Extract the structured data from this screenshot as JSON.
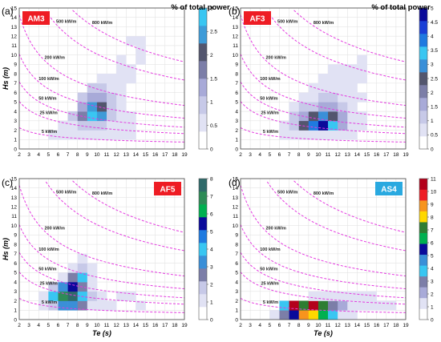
{
  "figure": {
    "colorbar_title": "% of total power",
    "x_axis_label": "Te (s)",
    "y_axis_label": "Hs (m)"
  },
  "chart_data": [
    {
      "type": "heatmap",
      "panel": "(a)",
      "station": "AM3",
      "station_color": "#ee1c24",
      "xlabel": "",
      "ylabel": "Hs (m)",
      "xlim": [
        2,
        19
      ],
      "ylim": [
        0,
        15
      ],
      "xticks": [
        2,
        3,
        4,
        5,
        6,
        7,
        8,
        9,
        10,
        11,
        12,
        13,
        14,
        15,
        16,
        17,
        18,
        19
      ],
      "yticks": [
        0,
        1,
        2,
        3,
        4,
        5,
        6,
        7,
        8,
        9,
        10,
        11,
        12,
        13,
        14,
        15
      ],
      "grid": true,
      "contours": [
        {
          "label": "5 kW/m",
          "power": 5
        },
        {
          "label": "25 kW/m",
          "power": 25
        },
        {
          "label": "50 kW/m",
          "power": 50
        },
        {
          "label": "100 kW/m",
          "power": 100
        },
        {
          "label": "200 kW/m",
          "power": 200
        },
        {
          "label": "500 kW/m",
          "power": 500
        },
        {
          "label": "800 kW/m",
          "power": 800
        }
      ],
      "colorbar": {
        "ticks": [
          "0",
          "0.5",
          "1",
          "1.5",
          "2",
          "2.5",
          "3"
        ],
        "max": 3,
        "colors": [
          "#ffffff",
          "#e1e2f4",
          "#c7c9e8",
          "#a8aad8",
          "#7c7ea8",
          "#53566e",
          "#3e9bd8",
          "#39c6f2"
        ]
      },
      "cells": [
        [
          5,
          1,
          0.08
        ],
        [
          6,
          1,
          0.12
        ],
        [
          7,
          1,
          0.12
        ],
        [
          8,
          1,
          0.18
        ],
        [
          9,
          1,
          0.2
        ],
        [
          10,
          1,
          0.2
        ],
        [
          11,
          1,
          0.15
        ],
        [
          12,
          1,
          0.1
        ],
        [
          13,
          1,
          0.06
        ],
        [
          6,
          2,
          0.15
        ],
        [
          7,
          2,
          0.3
        ],
        [
          8,
          2,
          0.5
        ],
        [
          9,
          2,
          0.6
        ],
        [
          10,
          2,
          0.5
        ],
        [
          11,
          2,
          0.35
        ],
        [
          12,
          2,
          0.2
        ],
        [
          13,
          2,
          0.1
        ],
        [
          7,
          3,
          0.5
        ],
        [
          8,
          3,
          1.3
        ],
        [
          9,
          3,
          2.8
        ],
        [
          10,
          3,
          2.3
        ],
        [
          11,
          3,
          0.8
        ],
        [
          12,
          3,
          0.3
        ],
        [
          13,
          3,
          0.1
        ],
        [
          8,
          4,
          1.0
        ],
        [
          9,
          4,
          2.4
        ],
        [
          10,
          4,
          1.9
        ],
        [
          11,
          4,
          0.7
        ],
        [
          12,
          4,
          0.25
        ],
        [
          8,
          5,
          0.5
        ],
        [
          9,
          5,
          1.2
        ],
        [
          10,
          5,
          1.1
        ],
        [
          11,
          5,
          0.45
        ],
        [
          12,
          5,
          0.15
        ],
        [
          9,
          6,
          0.5
        ],
        [
          10,
          6,
          0.45
        ],
        [
          11,
          6,
          0.2
        ],
        [
          12,
          6,
          0.1
        ],
        [
          10,
          7,
          0.15
        ],
        [
          11,
          7,
          0.1
        ],
        [
          12,
          7,
          0.08
        ],
        [
          13,
          7,
          0.05
        ],
        [
          12,
          8,
          0.08
        ],
        [
          13,
          8,
          0.05
        ],
        [
          12,
          9,
          0.05
        ],
        [
          14,
          9,
          0.05
        ],
        [
          14,
          10,
          0.05
        ],
        [
          13,
          11,
          0.05
        ],
        [
          14,
          11,
          0.05
        ]
      ]
    },
    {
      "type": "heatmap",
      "panel": "(b)",
      "station": "AF3",
      "station_color": "#ee1c24",
      "xlabel": "",
      "ylabel": "",
      "xlim": [
        2,
        19
      ],
      "ylim": [
        0,
        15
      ],
      "xticks": [
        2,
        3,
        4,
        5,
        6,
        7,
        8,
        9,
        10,
        11,
        12,
        13,
        14,
        15,
        16,
        17,
        18,
        19
      ],
      "yticks": [
        0,
        1,
        2,
        3,
        4,
        5,
        6,
        7,
        8,
        9,
        10,
        11,
        12,
        13,
        14,
        15
      ],
      "grid": true,
      "contours": [
        {
          "label": "5 kW/m",
          "power": 5
        },
        {
          "label": "25 kW/m",
          "power": 25
        },
        {
          "label": "50 kW/m",
          "power": 50
        },
        {
          "label": "100 kW/m",
          "power": 100
        },
        {
          "label": "200 kW/m",
          "power": 200
        },
        {
          "label": "500 kW/m",
          "power": 500
        },
        {
          "label": "800 kW/m",
          "power": 800
        }
      ],
      "colorbar": {
        "ticks": [
          "0",
          "0.5",
          "1",
          "1.5",
          "2",
          "2.5",
          "3",
          "3.5",
          "4",
          "4.5",
          "5"
        ],
        "max": 5,
        "colors": [
          "#ffffff",
          "#e1e2f4",
          "#c7c9e8",
          "#a8aad8",
          "#7c7ea8",
          "#53566e",
          "#3a8fd8",
          "#39c6f2",
          "#1f7ae0",
          "#1a3fd6",
          "#0a0a9a"
        ]
      },
      "cells": [
        [
          6,
          1,
          0.1
        ],
        [
          7,
          1,
          0.15
        ],
        [
          8,
          1,
          0.3
        ],
        [
          9,
          1,
          0.5
        ],
        [
          10,
          1,
          0.5
        ],
        [
          11,
          1,
          0.4
        ],
        [
          12,
          1,
          0.2
        ],
        [
          13,
          1,
          0.1
        ],
        [
          6,
          2,
          0.3
        ],
        [
          7,
          2,
          0.7
        ],
        [
          8,
          2,
          2.3
        ],
        [
          9,
          2,
          3.8
        ],
        [
          10,
          2,
          4.6
        ],
        [
          11,
          2,
          3.4
        ],
        [
          12,
          2,
          1.2
        ],
        [
          13,
          2,
          0.4
        ],
        [
          14,
          2,
          0.1
        ],
        [
          7,
          3,
          0.6
        ],
        [
          8,
          3,
          1.5
        ],
        [
          9,
          3,
          2.4
        ],
        [
          10,
          3,
          3.0
        ],
        [
          11,
          3,
          2.5
        ],
        [
          12,
          3,
          1.3
        ],
        [
          13,
          3,
          0.4
        ],
        [
          14,
          3,
          0.15
        ],
        [
          7,
          4,
          0.3
        ],
        [
          8,
          4,
          0.6
        ],
        [
          9,
          4,
          1.0
        ],
        [
          10,
          4,
          1.4
        ],
        [
          11,
          4,
          1.1
        ],
        [
          12,
          4,
          0.6
        ],
        [
          13,
          4,
          0.2
        ],
        [
          8,
          5,
          0.3
        ],
        [
          9,
          5,
          0.5
        ],
        [
          10,
          5,
          0.6
        ],
        [
          11,
          5,
          0.6
        ],
        [
          12,
          5,
          0.4
        ],
        [
          13,
          5,
          0.15
        ],
        [
          14,
          5,
          0.1
        ],
        [
          9,
          6,
          0.2
        ],
        [
          10,
          6,
          0.3
        ],
        [
          11,
          6,
          0.3
        ],
        [
          12,
          6,
          0.25
        ],
        [
          13,
          6,
          0.15
        ],
        [
          10,
          7,
          0.1
        ],
        [
          11,
          7,
          0.15
        ],
        [
          12,
          7,
          0.1
        ],
        [
          13,
          7,
          0.08
        ],
        [
          14,
          7,
          0.05
        ],
        [
          11,
          8,
          0.05
        ],
        [
          12,
          8,
          0.05
        ],
        [
          13,
          8,
          0.05
        ],
        [
          14,
          8,
          0.05
        ],
        [
          14,
          9,
          0.05
        ]
      ]
    },
    {
      "type": "heatmap",
      "panel": "(c)",
      "station": "AF5",
      "station_color": "#ee1c24",
      "xlabel": "Te (s)",
      "ylabel": "Hs (m)",
      "xlim": [
        2,
        19
      ],
      "ylim": [
        0,
        15
      ],
      "xticks": [
        2,
        3,
        4,
        5,
        6,
        7,
        8,
        9,
        10,
        11,
        12,
        13,
        14,
        15,
        16,
        17,
        18,
        19
      ],
      "yticks": [
        0,
        1,
        2,
        3,
        4,
        5,
        6,
        7,
        8,
        9,
        10,
        11,
        12,
        13,
        14,
        15
      ],
      "grid": true,
      "contours": [
        {
          "label": "5 kW/m",
          "power": 5
        },
        {
          "label": "25 kW/m",
          "power": 25
        },
        {
          "label": "50 kW/m",
          "power": 50
        },
        {
          "label": "100 kW/m",
          "power": 100
        },
        {
          "label": "200 kW/m",
          "power": 200
        },
        {
          "label": "500 kW/m",
          "power": 500
        },
        {
          "label": "800 kW/m",
          "power": 800
        }
      ],
      "colorbar": {
        "ticks": [
          "0",
          "1",
          "2",
          "3",
          "4",
          "5",
          "6",
          "7",
          "8"
        ],
        "max": 8,
        "colors": [
          "#ffffff",
          "#e1e2f4",
          "#c7c9e8",
          "#7c7ea8",
          "#3a8fd8",
          "#39c6f2",
          "#1f7ae0",
          "#0a0a9a",
          "#00b050",
          "#2e8b57",
          "#2f6a6a"
        ]
      },
      "cells": [
        [
          4,
          1,
          0.3
        ],
        [
          5,
          1,
          1.2
        ],
        [
          6,
          1,
          2.5
        ],
        [
          7,
          1,
          3.0
        ],
        [
          8,
          1,
          2.0
        ],
        [
          9,
          1,
          0.7
        ],
        [
          10,
          1,
          0.3
        ],
        [
          11,
          1,
          0.1
        ],
        [
          4,
          2,
          0.5
        ],
        [
          5,
          2,
          3.5
        ],
        [
          6,
          2,
          6.5
        ],
        [
          7,
          2,
          7.5
        ],
        [
          8,
          2,
          3.5
        ],
        [
          9,
          2,
          1.0
        ],
        [
          10,
          2,
          0.3
        ],
        [
          5,
          3,
          1.2
        ],
        [
          6,
          3,
          3.0
        ],
        [
          7,
          3,
          5.5
        ],
        [
          8,
          3,
          2.0
        ],
        [
          9,
          3,
          0.4
        ],
        [
          6,
          4,
          0.8
        ],
        [
          7,
          4,
          2.0
        ],
        [
          8,
          4,
          4.0
        ],
        [
          9,
          4,
          0.8
        ],
        [
          7,
          5,
          0.6
        ],
        [
          8,
          5,
          1.5
        ],
        [
          9,
          5,
          0.3
        ],
        [
          8,
          6,
          0.2
        ],
        [
          10,
          1,
          0.3
        ],
        [
          12,
          2,
          0.1
        ],
        [
          13,
          2,
          0.05
        ],
        [
          14,
          1,
          0.05
        ]
      ]
    },
    {
      "type": "heatmap",
      "panel": "(d)",
      "station": "AS4",
      "station_color": "#29a9e0",
      "xlabel": "Te (s)",
      "ylabel": "",
      "xlim": [
        2,
        19
      ],
      "ylim": [
        0,
        15
      ],
      "xticks": [
        2,
        3,
        4,
        5,
        6,
        7,
        8,
        9,
        10,
        11,
        12,
        13,
        14,
        15,
        16,
        17,
        18,
        19
      ],
      "yticks": [
        0,
        1,
        2,
        3,
        4,
        5,
        6,
        7,
        8,
        9,
        10,
        11,
        12,
        13,
        14,
        15
      ],
      "grid": true,
      "contours": [
        {
          "label": "5 kW/m",
          "power": 5
        },
        {
          "label": "25 kW/m",
          "power": 25
        },
        {
          "label": "50 kW/m",
          "power": 50
        },
        {
          "label": "100 kW/m",
          "power": 100
        },
        {
          "label": "200 kW/m",
          "power": 200
        },
        {
          "label": "500 kW/m",
          "power": 500
        },
        {
          "label": "800 kW/m",
          "power": 800
        }
      ],
      "colorbar": {
        "ticks": [
          "0",
          "1",
          "2",
          "3",
          "4",
          "5",
          "6",
          "7",
          "8",
          "9",
          "10",
          "11"
        ],
        "max": 11,
        "colors": [
          "#ffffff",
          "#e1e2f4",
          "#a8aad8",
          "#7c7ea8",
          "#39c6f2",
          "#3a8fd8",
          "#0a0a9a",
          "#00b050",
          "#2e7d32",
          "#ffd800",
          "#f7941d",
          "#ee1c24",
          "#b3001b"
        ]
      },
      "cells": [
        [
          5,
          0,
          0.3
        ],
        [
          6,
          0,
          2.0
        ],
        [
          7,
          0,
          5.5
        ],
        [
          8,
          0,
          9.0
        ],
        [
          9,
          0,
          8.0
        ],
        [
          10,
          0,
          6.0
        ],
        [
          11,
          0,
          3.0
        ],
        [
          12,
          0,
          0.8
        ],
        [
          13,
          0,
          0.2
        ],
        [
          6,
          1,
          3.5
        ],
        [
          7,
          1,
          10.5
        ],
        [
          8,
          1,
          6.5
        ],
        [
          9,
          1,
          10.8
        ],
        [
          10,
          1,
          7.0
        ],
        [
          11,
          1,
          2.5
        ],
        [
          12,
          1,
          1.0
        ],
        [
          13,
          1,
          0.4
        ],
        [
          14,
          1,
          0.2
        ],
        [
          15,
          1,
          0.1
        ],
        [
          16,
          1,
          0.1
        ],
        [
          17,
          1,
          0.1
        ],
        [
          9,
          2,
          0.3
        ],
        [
          10,
          2,
          0.3
        ],
        [
          11,
          2,
          0.2
        ],
        [
          12,
          2,
          0.1
        ],
        [
          13,
          2,
          0.1
        ],
        [
          14,
          2,
          0.1
        ],
        [
          15,
          2,
          0.05
        ]
      ]
    }
  ]
}
